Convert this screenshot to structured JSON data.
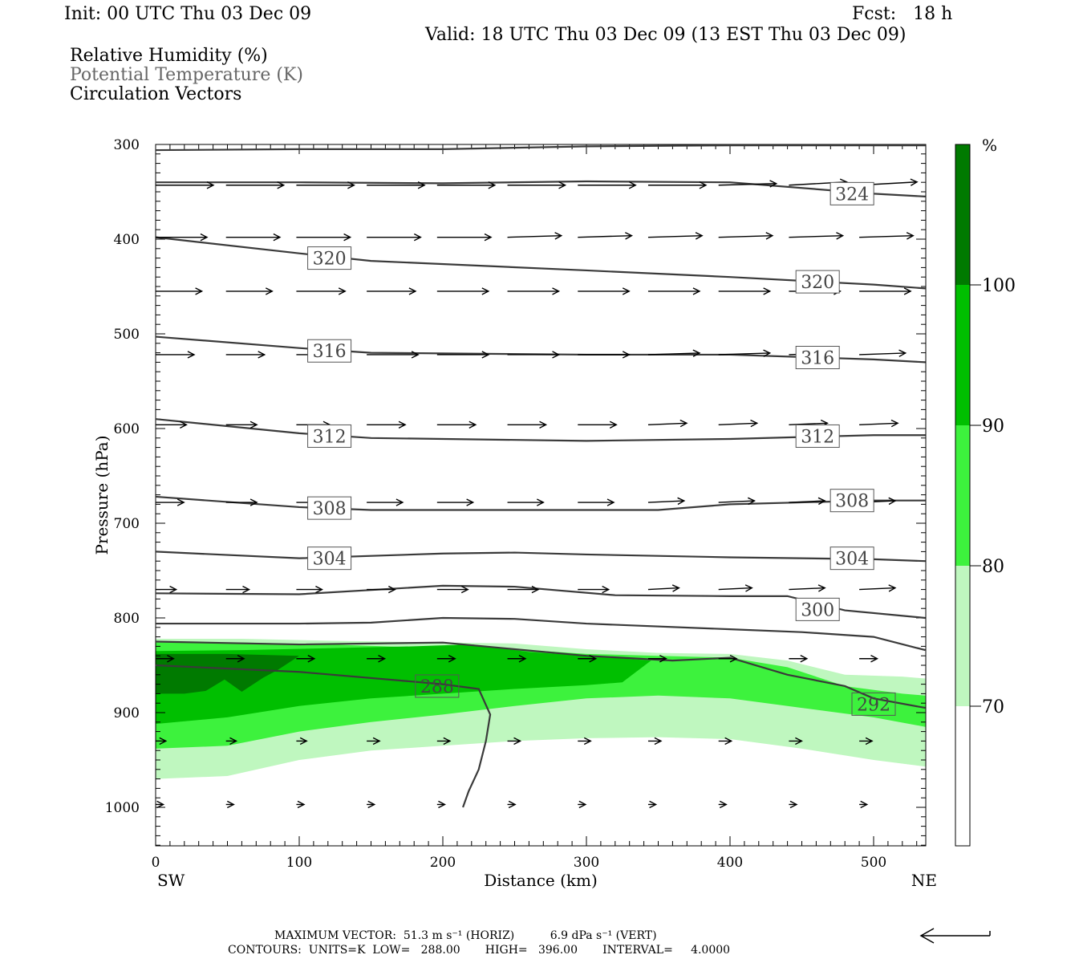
{
  "header": {
    "init": "Init: 00 UTC Thu 03 Dec 09",
    "fcst": "Fcst:   18 h",
    "valid": "Valid: 18 UTC Thu 03 Dec 09 (13 EST Thu 03 Dec 09)",
    "fields": [
      {
        "label": "Relative Humidity (%)",
        "color": "#000000"
      },
      {
        "label": "Potential Temperature (K)",
        "color": "#666666"
      },
      {
        "label": "Circulation Vectors",
        "color": "#000000"
      }
    ]
  },
  "footer": {
    "max_vector": "MAXIMUM VECTOR:  51.3 m s⁻¹ (HORIZ)          6.9 dPa s⁻¹ (VERT)",
    "contours": "CONTOURS:  UNITS=K  LOW=   288.00       HIGH=   396.00       INTERVAL=     4.0000",
    "ref_vector_icon": "left-arrow"
  },
  "chart_data": {
    "type": "cross-section",
    "xlabel": "Distance (km)",
    "ylabel": "Pressure (hPa)",
    "x_ticks": [
      0,
      100,
      200,
      300,
      400,
      500
    ],
    "y_ticks": [
      300,
      400,
      500,
      600,
      700,
      800,
      900,
      1000
    ],
    "xlim": [
      0,
      536
    ],
    "ylim": [
      1040,
      300
    ],
    "endpoints": {
      "left": "SW",
      "right": "NE"
    },
    "colorbar": {
      "unit": "%",
      "levels": [
        70,
        80,
        90,
        100
      ],
      "colors": [
        "#ffffff",
        "#bff7bf",
        "#3df23d",
        "#00bf00",
        "#007a00"
      ]
    },
    "rh_areas": [
      {
        "level": 70,
        "color": "#bff7bf",
        "points": [
          [
            0,
            822
          ],
          [
            60,
            822
          ],
          [
            120,
            824
          ],
          [
            200,
            826
          ],
          [
            250,
            827
          ],
          [
            300,
            833
          ],
          [
            350,
            837
          ],
          [
            400,
            838
          ],
          [
            440,
            845
          ],
          [
            480,
            860
          ],
          [
            520,
            862
          ],
          [
            536,
            864
          ],
          [
            536,
            957
          ],
          [
            500,
            950
          ],
          [
            450,
            938
          ],
          [
            400,
            928
          ],
          [
            350,
            926
          ],
          [
            300,
            927
          ],
          [
            250,
            930
          ],
          [
            200,
            935
          ],
          [
            150,
            940
          ],
          [
            100,
            950
          ],
          [
            50,
            967
          ],
          [
            0,
            970
          ]
        ]
      },
      {
        "level": 80,
        "color": "#3df23d",
        "points": [
          [
            0,
            826
          ],
          [
            60,
            826
          ],
          [
            120,
            828
          ],
          [
            180,
            831
          ],
          [
            220,
            832
          ],
          [
            260,
            834
          ],
          [
            300,
            838
          ],
          [
            350,
            840
          ],
          [
            400,
            842
          ],
          [
            440,
            852
          ],
          [
            480,
            872
          ],
          [
            520,
            880
          ],
          [
            536,
            882
          ],
          [
            536,
            915
          ],
          [
            500,
            905
          ],
          [
            450,
            895
          ],
          [
            400,
            885
          ],
          [
            350,
            882
          ],
          [
            300,
            885
          ],
          [
            250,
            893
          ],
          [
            200,
            902
          ],
          [
            150,
            910
          ],
          [
            100,
            920
          ],
          [
            50,
            935
          ],
          [
            0,
            938
          ]
        ]
      },
      {
        "level": 90,
        "color": "#00bf00",
        "points": [
          [
            0,
            835
          ],
          [
            60,
            834
          ],
          [
            120,
            832
          ],
          [
            180,
            830
          ],
          [
            220,
            828
          ],
          [
            260,
            836
          ],
          [
            300,
            840
          ],
          [
            345,
            845
          ],
          [
            325,
            868
          ],
          [
            300,
            871
          ],
          [
            250,
            875
          ],
          [
            200,
            880
          ],
          [
            150,
            885
          ],
          [
            100,
            893
          ],
          [
            50,
            905
          ],
          [
            0,
            912
          ]
        ]
      },
      {
        "level": 100,
        "color": "#007a00",
        "points": [
          [
            0,
            838
          ],
          [
            50,
            838
          ],
          [
            100,
            840
          ],
          [
            85,
            855
          ],
          [
            75,
            863
          ],
          [
            60,
            878
          ],
          [
            48,
            865
          ],
          [
            35,
            877
          ],
          [
            20,
            880
          ],
          [
            0,
            880
          ]
        ]
      }
    ],
    "theta_contours": [
      {
        "level": 288,
        "label": "288",
        "label_at": [
          196,
          872
        ],
        "points": [
          [
            0,
            850
          ],
          [
            100,
            857
          ],
          [
            200,
            870
          ],
          [
            225,
            875
          ],
          [
            233,
            902
          ],
          [
            230,
            930
          ],
          [
            225,
            960
          ],
          [
            218,
            983
          ],
          [
            214,
            1000
          ]
        ]
      },
      {
        "level": 292,
        "label": "292",
        "label_at": [
          500,
          891
        ],
        "points": [
          [
            0,
            825
          ],
          [
            100,
            828
          ],
          [
            200,
            826
          ],
          [
            300,
            840
          ],
          [
            360,
            845
          ],
          [
            400,
            842
          ],
          [
            440,
            860
          ],
          [
            480,
            872
          ],
          [
            500,
            885
          ],
          [
            536,
            895
          ]
        ]
      },
      {
        "level": 296,
        "label": "",
        "label_at": null,
        "points": [
          [
            0,
            806
          ],
          [
            100,
            806
          ],
          [
            150,
            805
          ],
          [
            200,
            800
          ],
          [
            250,
            801
          ],
          [
            300,
            806
          ],
          [
            400,
            812
          ],
          [
            450,
            815
          ],
          [
            500,
            820
          ],
          [
            536,
            834
          ]
        ]
      },
      {
        "level": 300,
        "label": "300",
        "label_at": [
          461,
          791
        ],
        "points": [
          [
            0,
            774
          ],
          [
            100,
            775
          ],
          [
            200,
            766
          ],
          [
            250,
            767
          ],
          [
            320,
            776
          ],
          [
            400,
            777
          ],
          [
            440,
            777
          ],
          [
            480,
            792
          ],
          [
            536,
            800
          ]
        ]
      },
      {
        "level": 304,
        "label": "304",
        "label_at": [
          121,
          737
        ],
        "points": [
          [
            0,
            730
          ],
          [
            100,
            737
          ],
          [
            200,
            732
          ],
          [
            250,
            731
          ],
          [
            300,
            733
          ],
          [
            400,
            736
          ],
          [
            500,
            738
          ],
          [
            536,
            740
          ]
        ]
      },
      {
        "level": 308,
        "label": "308",
        "label_at": [
          121,
          684
        ],
        "points": [
          [
            0,
            672
          ],
          [
            100,
            683
          ],
          [
            150,
            686
          ],
          [
            300,
            686
          ],
          [
            350,
            686
          ],
          [
            400,
            680
          ],
          [
            500,
            676
          ],
          [
            536,
            676
          ]
        ]
      },
      {
        "level": 312,
        "label": "312",
        "label_at": [
          121,
          608
        ],
        "points": [
          [
            0,
            590
          ],
          [
            100,
            605
          ],
          [
            150,
            610
          ],
          [
            300,
            613
          ],
          [
            400,
            611
          ],
          [
            500,
            607
          ],
          [
            536,
            607
          ]
        ]
      },
      {
        "level": 316,
        "label": "316",
        "label_at": [
          121,
          518
        ],
        "points": [
          [
            0,
            503
          ],
          [
            100,
            515
          ],
          [
            150,
            520
          ],
          [
            300,
            522
          ],
          [
            400,
            522
          ],
          [
            500,
            527
          ],
          [
            536,
            530
          ]
        ]
      },
      {
        "level": 320,
        "label": "320",
        "label_at": [
          121,
          420
        ],
        "points": [
          [
            0,
            398
          ],
          [
            100,
            415
          ],
          [
            150,
            423
          ],
          [
            300,
            433
          ],
          [
            400,
            440
          ],
          [
            500,
            448
          ],
          [
            536,
            452
          ]
        ]
      },
      {
        "level": 320,
        "label": "320",
        "label_at": [
          461,
          445
        ],
        "points": []
      },
      {
        "level": 324,
        "label": "324",
        "label_at": [
          485,
          352
        ],
        "points": [
          [
            0,
            340
          ],
          [
            100,
            340
          ],
          [
            200,
            341
          ],
          [
            300,
            339
          ],
          [
            400,
            340
          ],
          [
            500,
            352
          ],
          [
            536,
            355
          ]
        ]
      },
      {
        "level": 328,
        "label": "",
        "label_at": null,
        "points": [
          [
            0,
            306
          ],
          [
            100,
            305
          ],
          [
            200,
            305
          ],
          [
            300,
            302
          ],
          [
            400,
            301
          ],
          [
            500,
            301
          ],
          [
            536,
            301
          ]
        ]
      }
    ],
    "theta_labels_extra": [
      {
        "label": "316",
        "label_at": [
          461,
          525
        ]
      },
      {
        "label": "312",
        "label_at": [
          461,
          608
        ]
      },
      {
        "label": "308",
        "label_at": [
          485,
          676
        ]
      },
      {
        "label": "304",
        "label_at": [
          485,
          737
        ]
      }
    ],
    "vectors": {
      "x_positions": [
        0,
        49,
        98,
        147,
        196,
        245,
        294,
        343,
        392,
        441,
        490
      ],
      "rows": [
        {
          "p": 343,
          "u": [
            45,
            45,
            45,
            45,
            45,
            45,
            45,
            45,
            45,
            45,
            45
          ],
          "w": [
            0,
            0,
            0,
            0,
            0,
            0,
            0,
            0,
            -1,
            -2,
            -2
          ]
        },
        {
          "p": 398,
          "u": [
            40,
            42,
            42,
            42,
            42,
            42,
            42,
            42,
            42,
            42,
            42
          ],
          "w": [
            0,
            0,
            0,
            0,
            0,
            -1,
            -1,
            -1,
            -1,
            -1,
            -1
          ]
        },
        {
          "p": 455,
          "u": [
            36,
            36,
            38,
            38,
            40,
            40,
            40,
            40,
            40,
            40,
            40
          ],
          "w": [
            0,
            0,
            0,
            0,
            0,
            0,
            0,
            0,
            0,
            0,
            0
          ]
        },
        {
          "p": 522,
          "u": [
            30,
            30,
            36,
            40,
            40,
            40,
            40,
            40,
            40,
            36,
            36
          ],
          "w": [
            0,
            0,
            0,
            0,
            0,
            0,
            0,
            -1,
            -1,
            -1,
            -1
          ]
        },
        {
          "p": 596,
          "u": [
            24,
            24,
            26,
            30,
            30,
            30,
            30,
            30,
            30,
            30,
            30
          ],
          "w": [
            0,
            0,
            0,
            0,
            0,
            0,
            0,
            -1,
            -1,
            -1,
            -1
          ]
        },
        {
          "p": 678,
          "u": [
            22,
            24,
            26,
            28,
            28,
            28,
            28,
            28,
            28,
            28,
            28
          ],
          "w": [
            0,
            0,
            0,
            0,
            0,
            0,
            0,
            -1,
            -1,
            -1,
            -1
          ]
        },
        {
          "p": 770,
          "u": [
            16,
            18,
            20,
            22,
            24,
            24,
            24,
            24,
            26,
            28,
            28
          ],
          "w": [
            0,
            0,
            0,
            0,
            0,
            0,
            0,
            -1,
            -1,
            -1,
            -1
          ]
        },
        {
          "p": 843,
          "u": [
            14,
            14,
            14,
            14,
            14,
            14,
            14,
            14,
            14,
            14,
            14
          ],
          "w": [
            0,
            0,
            0,
            0,
            0,
            0,
            0,
            0,
            0,
            0,
            0
          ]
        },
        {
          "p": 930,
          "u": [
            8,
            8,
            8,
            10,
            10,
            10,
            10,
            10,
            10,
            10,
            10
          ],
          "w": [
            0,
            0,
            0,
            0,
            0,
            0,
            0,
            0,
            0,
            0,
            0
          ]
        },
        {
          "p": 997,
          "u": [
            6,
            6,
            6,
            6,
            6,
            6,
            6,
            6,
            6,
            6,
            6
          ],
          "w": [
            0,
            0,
            0,
            0,
            0,
            0,
            0,
            0,
            0,
            0,
            0
          ]
        }
      ]
    }
  }
}
